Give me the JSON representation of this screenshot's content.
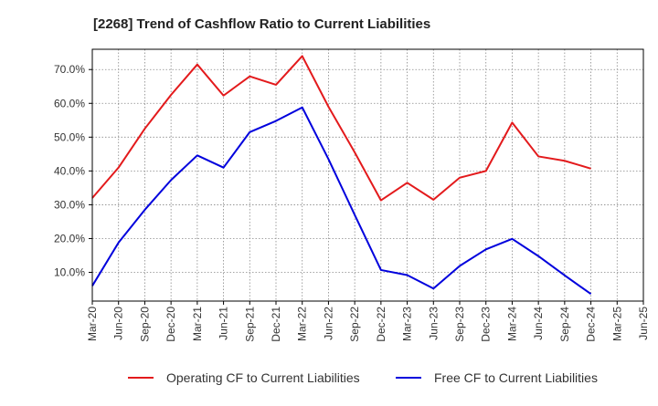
{
  "title": "[2268]  Trend of Cashflow Ratio to Current Liabilities",
  "colors": {
    "operating": "#e31a1c",
    "free": "#0000dd",
    "grid": "#888888",
    "plot_bg": "#ffffff",
    "frame": "#000000"
  },
  "chart_data": {
    "type": "line",
    "title": "[2268]  Trend of Cashflow Ratio to Current Liabilities",
    "xlabel": "",
    "ylabel": "",
    "categories": [
      "Mar-20",
      "Jun-20",
      "Sep-20",
      "Dec-20",
      "Mar-21",
      "Jun-21",
      "Sep-21",
      "Dec-21",
      "Mar-22",
      "Jun-22",
      "Sep-22",
      "Dec-22",
      "Mar-23",
      "Jun-23",
      "Sep-23",
      "Dec-23",
      "Mar-24",
      "Jun-24",
      "Sep-24",
      "Dec-24",
      "Mar-25",
      "Jun-25"
    ],
    "y_ticks": [
      10,
      20,
      30,
      40,
      50,
      60,
      70
    ],
    "y_tick_labels": [
      "10.0%",
      "20.0%",
      "30.0%",
      "40.0%",
      "50.0%",
      "60.0%",
      "70.0%"
    ],
    "ylim": [
      1.5,
      76
    ],
    "grid": true,
    "legend_position": "bottom",
    "series": [
      {
        "name": "Operating CF to Current Liabilities",
        "color": "#e31a1c",
        "values": [
          32.0,
          41.0,
          52.5,
          62.5,
          71.5,
          62.3,
          68.0,
          65.5,
          74.0,
          59.0,
          45.5,
          31.3,
          36.5,
          31.5,
          38.0,
          40.0,
          54.3,
          44.3,
          43.0,
          40.7,
          null,
          null
        ]
      },
      {
        "name": "Free CF to Current Liabilities",
        "color": "#0000dd",
        "values": [
          6.0,
          18.8,
          28.5,
          37.3,
          44.6,
          41.0,
          51.5,
          54.8,
          58.8,
          43.5,
          27.0,
          10.7,
          9.2,
          5.2,
          11.9,
          16.8,
          19.9,
          14.8,
          9.1,
          3.6,
          null,
          null
        ]
      }
    ]
  }
}
